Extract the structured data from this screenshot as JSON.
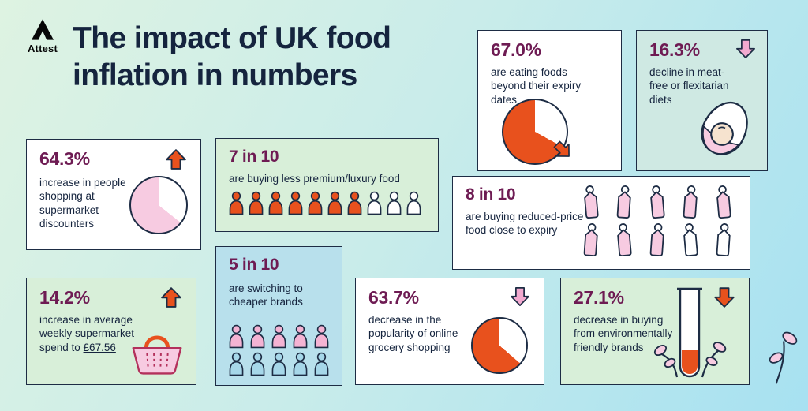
{
  "brand": {
    "name": "Attest"
  },
  "title": {
    "line1": "The impact of UK food",
    "line2": "inflation in numbers"
  },
  "colors": {
    "navy": "#15243e",
    "plum": "#6e1b53",
    "orange": "#e8511d",
    "pink": "#f2a9cf",
    "pink_light": "#f7cbe1",
    "card_mint": "#d8efd9",
    "card_blue": "#b8e0ec",
    "card_teal": "#cfe9e3",
    "bg_start": "#def3e2",
    "bg_end": "#a7e1f1"
  },
  "cards": {
    "expiry": {
      "value": "67.0%",
      "text": "are eating foods beyond their expiry dates",
      "pie": {
        "from": 0,
        "segments": [
          {
            "color": "#ffffff",
            "to": 33
          },
          {
            "color": "#e8511d",
            "to": 100
          }
        ]
      }
    },
    "diets": {
      "value": "16.3%",
      "text": "decline in meat-free or flexitarian diets"
    },
    "discounters": {
      "value": "64.3%",
      "text": "increase in people shopping at supermarket discounters",
      "pie": {
        "from": 0,
        "segments": [
          {
            "color": "#ffffff",
            "to": 35.7
          },
          {
            "color": "#f7cbe1",
            "to": 100
          }
        ]
      }
    },
    "premium": {
      "value": "7 in 10",
      "text": "are buying less premium/luxury food",
      "pictogram": {
        "type": "person",
        "total": 10,
        "filled": 7,
        "filled_color": "#e8511d",
        "empty_color": "#ffffff"
      }
    },
    "reduced": {
      "value": "8 in 10",
      "text": "are buying reduced-price food close to expiry",
      "pictogram": {
        "type": "tag",
        "total": 10,
        "filled": 8,
        "filled_color": "#f7cbe1",
        "empty_color": "#ffffff"
      }
    },
    "spend": {
      "value": "14.2%",
      "text_before": "increase in average weekly supermarket spend to ",
      "amount": "£67.56"
    },
    "cheaper": {
      "value": "5 in 10",
      "text": "are switching to cheaper brands",
      "pictogram": {
        "type": "person",
        "total": 10,
        "filled": 5,
        "filled_color": "#f4b3d3",
        "empty_color": "#a6d7e9"
      }
    },
    "online": {
      "value": "63.7%",
      "text": "decrease in the popularity of online grocery shopping",
      "pie": {
        "from": 0,
        "segments": [
          {
            "color": "#ffffff",
            "to": 36.3
          },
          {
            "color": "#e8511d",
            "to": 100
          }
        ]
      }
    },
    "brands": {
      "value": "27.1%",
      "text": "decrease in buying from environmentally friendly brands"
    }
  },
  "chart_data": {
    "type": "table",
    "title": "The impact of UK food inflation in numbers",
    "stats": [
      {
        "value": 67.0,
        "unit": "%",
        "label": "are eating foods beyond their expiry dates",
        "visual": "pie"
      },
      {
        "value": 16.3,
        "unit": "%",
        "direction": "down",
        "label": "decline in meat-free or flexitarian diets"
      },
      {
        "value": 64.3,
        "unit": "%",
        "direction": "up",
        "label": "increase in people shopping at supermarket discounters",
        "visual": "pie"
      },
      {
        "value": 7,
        "out_of": 10,
        "label": "are buying less premium/luxury food",
        "visual": "pictogram"
      },
      {
        "value": 8,
        "out_of": 10,
        "label": "are buying reduced-price food close to expiry",
        "visual": "pictogram"
      },
      {
        "value": 14.2,
        "unit": "%",
        "direction": "up",
        "label": "increase in average weekly supermarket spend to £67.56"
      },
      {
        "value": 5,
        "out_of": 10,
        "label": "are switching to cheaper brands",
        "visual": "pictogram"
      },
      {
        "value": 63.7,
        "unit": "%",
        "direction": "down",
        "label": "decrease in the popularity of online grocery shopping",
        "visual": "pie"
      },
      {
        "value": 27.1,
        "unit": "%",
        "direction": "down",
        "label": "decrease in buying from environmentally friendly brands"
      }
    ]
  }
}
